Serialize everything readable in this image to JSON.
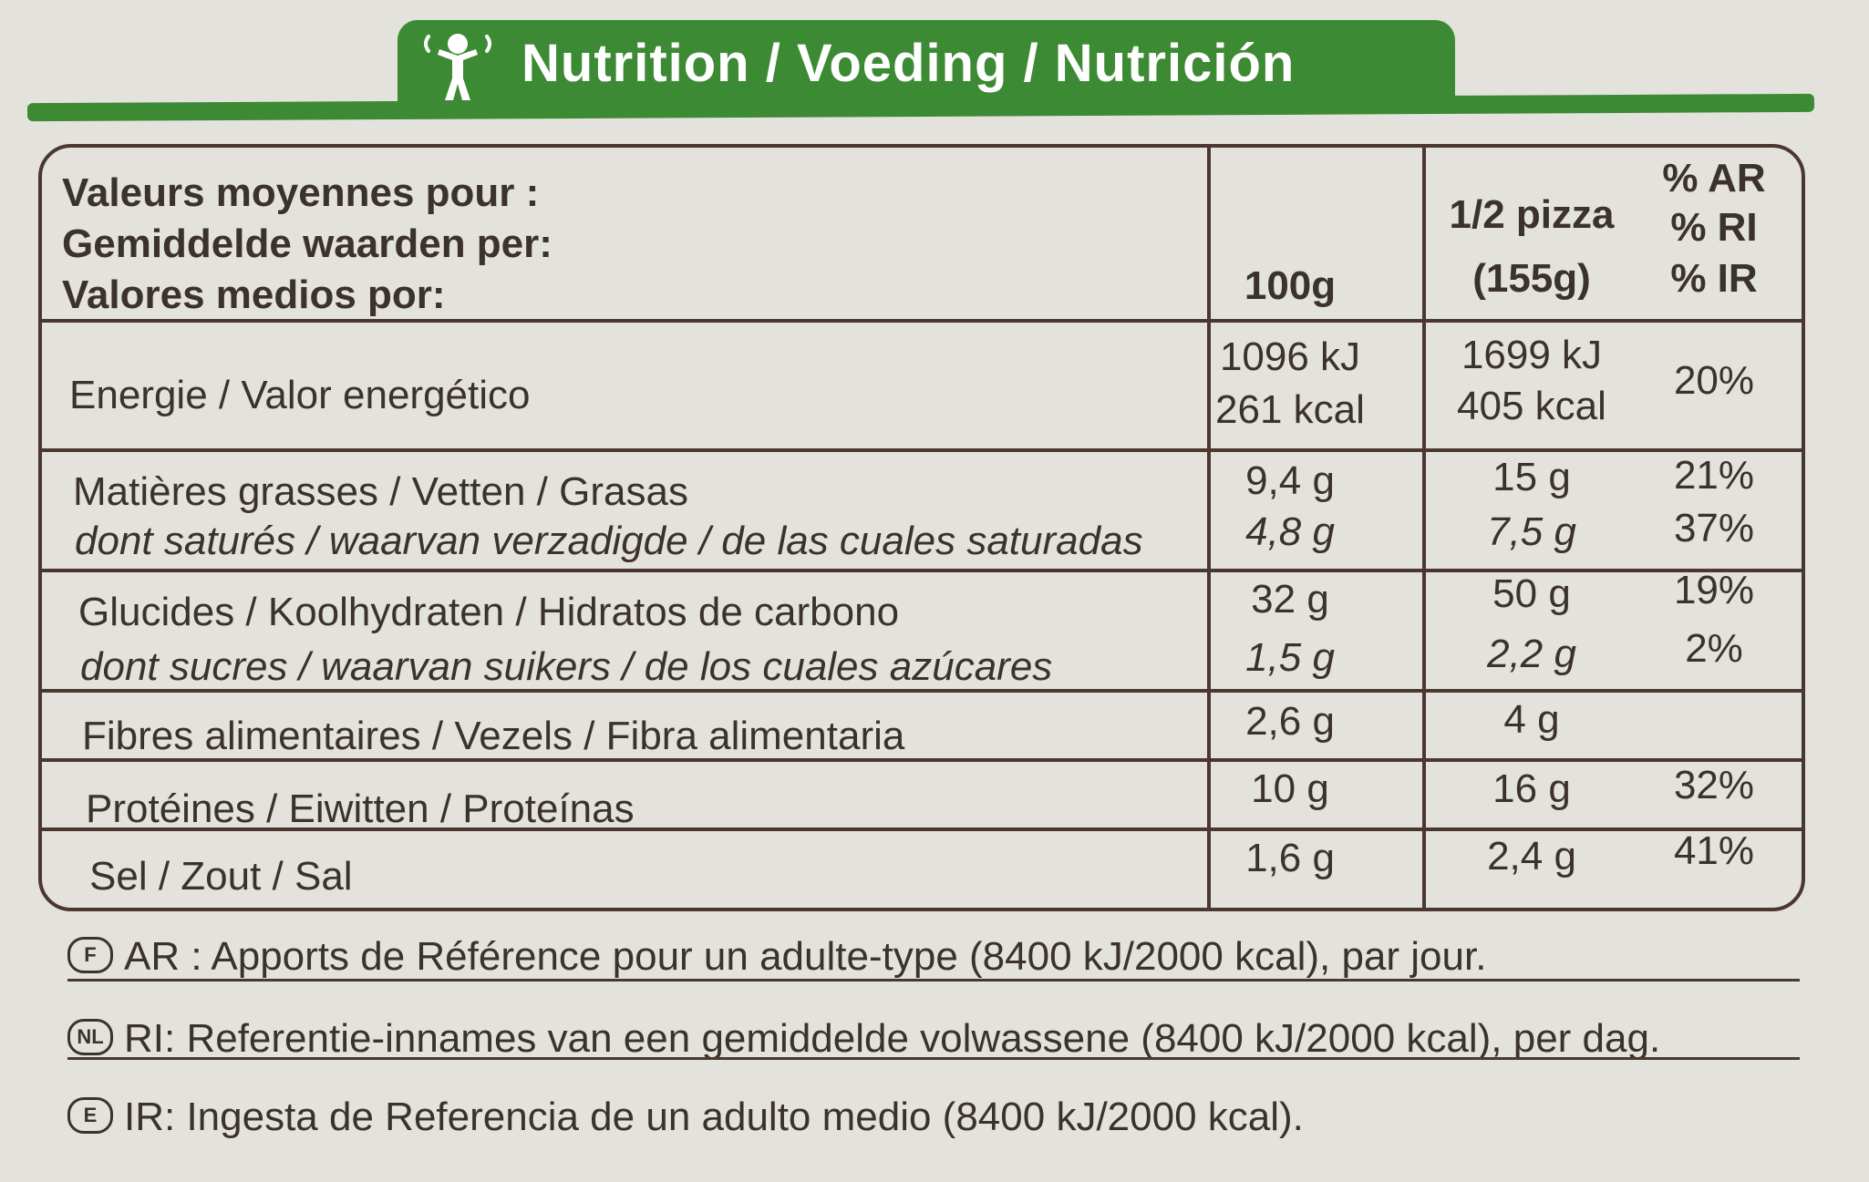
{
  "header": {
    "title": "Nutrition / Voeding / Nutrición",
    "icon": "child-icon",
    "brand_color": "#3d8a34"
  },
  "table": {
    "head_labels": [
      "Valeurs moyennes pour :",
      "Gemiddelde waarden per:",
      "Valores medios por:"
    ],
    "col_100g": "100g",
    "col_half_line1": "1/2 pizza",
    "col_half_line2": "(155g)",
    "col_ref": [
      "% AR",
      "% RI",
      "% IR"
    ],
    "rows": [
      {
        "label": "Energie / Valor energético",
        "v100_1": "1096 kJ",
        "v100_2": "261 kcal",
        "vhalf_1": "1699 kJ",
        "vhalf_2": "405 kcal",
        "ref": "20%"
      },
      {
        "label": "Matières grasses / Vetten / Grasas",
        "sub": "dont saturés / waarvan verzadigde / de las cuales saturadas",
        "v100": "9,4 g",
        "v100_sub": "4,8 g",
        "vhalf": "15 g",
        "vhalf_sub": "7,5 g",
        "ref": "21%",
        "ref_sub": "37%"
      },
      {
        "label": "Glucides / Koolhydraten / Hidratos de carbono",
        "sub": "dont sucres / waarvan suikers / de los cuales azúcares",
        "v100": "32 g",
        "v100_sub": "1,5 g",
        "vhalf": "50 g",
        "vhalf_sub": "2,2 g",
        "ref": "19%",
        "ref_sub": "2%"
      },
      {
        "label": "Fibres alimentaires / Vezels / Fibra alimentaria",
        "v100": "2,6 g",
        "vhalf": "4 g",
        "ref": ""
      },
      {
        "label": "Protéines / Eiwitten / Proteínas",
        "v100": "10 g",
        "vhalf": "16 g",
        "ref": "32%"
      },
      {
        "label": "Sel / Zout / Sal",
        "v100": "1,6 g",
        "vhalf": "2,4 g",
        "ref": "41%"
      }
    ]
  },
  "footnotes": [
    {
      "badge": "F",
      "text": "AR : Apports de Référence pour un adulte-type (8400 kJ/2000 kcal), par jour."
    },
    {
      "badge": "NL",
      "text": "RI: Referentie-innames van een gemiddelde volwassene (8400 kJ/2000 kcal), per dag."
    },
    {
      "badge": "E",
      "text": "IR: Ingesta de Referencia de un adulto medio (8400 kJ/2000 kcal)."
    }
  ]
}
